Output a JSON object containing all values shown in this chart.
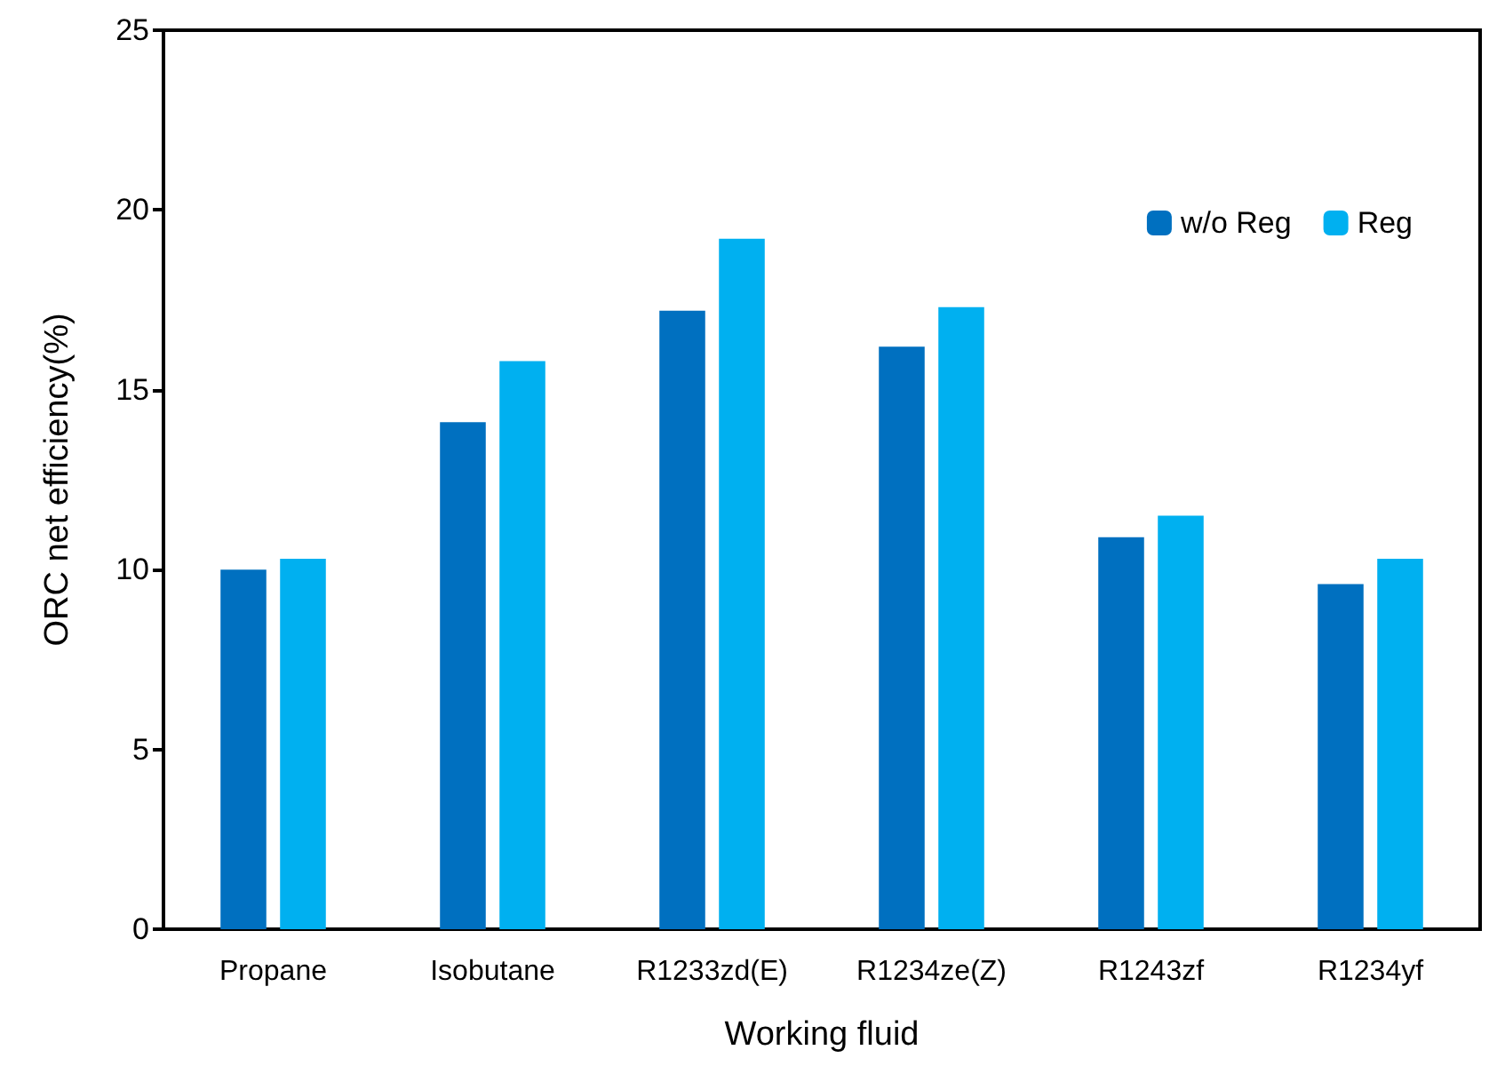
{
  "chart_data": {
    "type": "bar",
    "xlabel": "Working fluid",
    "ylabel": "ORC net efficiency(%)",
    "categories": [
      "Propane",
      "Isobutane",
      "R1233zd(E)",
      "R1234ze(Z)",
      "R1243zf",
      "R1234yf"
    ],
    "series": [
      {
        "name": "w/o Reg",
        "color": "#0070c0",
        "values": [
          10.0,
          14.1,
          17.2,
          16.2,
          10.9,
          9.6
        ]
      },
      {
        "name": "Reg",
        "color": "#00b0f0",
        "values": [
          10.3,
          15.8,
          19.2,
          17.3,
          11.5,
          10.3
        ]
      }
    ],
    "ylim": [
      0,
      25
    ],
    "yticks": [
      0,
      5,
      10,
      15,
      20,
      25
    ],
    "grid": false,
    "legend": "top right"
  }
}
